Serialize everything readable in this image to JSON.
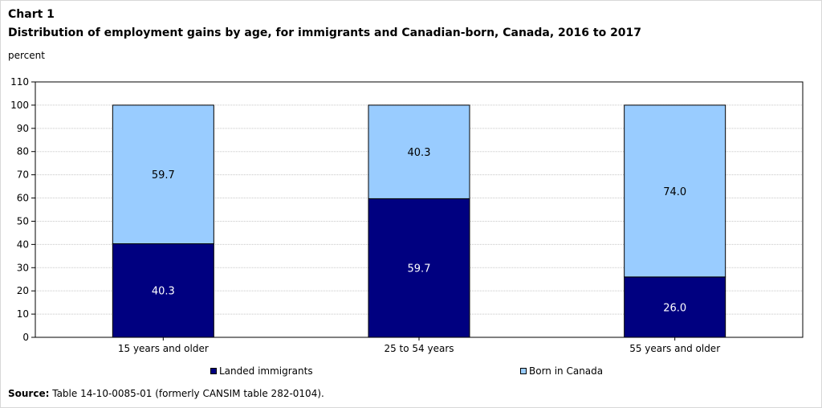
{
  "chart_data": {
    "type": "bar",
    "stacked": true,
    "chart_number": "Chart 1",
    "title": "Distribution of employment gains by age, for immigrants and Canadian-born, Canada, 2016 to 2017",
    "ylabel": "percent",
    "xlabel": "",
    "categories": [
      "15 years and older",
      "25 to 54 years",
      "55 years and older"
    ],
    "series": [
      {
        "name": "Landed immigrants",
        "values": [
          40.3,
          59.7,
          26.0
        ],
        "labels": [
          "40.3",
          "59.7",
          "26.0"
        ],
        "color": "#000080",
        "label_color": "#ffffff"
      },
      {
        "name": "Born in Canada",
        "values": [
          59.7,
          40.3,
          74.0
        ],
        "labels": [
          "59.7",
          "40.3",
          "74.0"
        ],
        "color": "#99ccff",
        "label_color": "#000000"
      }
    ],
    "ylim": [
      0,
      110
    ],
    "yticks": [
      0,
      10,
      20,
      30,
      40,
      50,
      60,
      70,
      80,
      90,
      100,
      110
    ],
    "grid": true,
    "legend_position": "bottom"
  },
  "source": {
    "label": "Source:",
    "text": "Table 14-10-0085-01 (formerly CANSIM table 282-0104)."
  }
}
